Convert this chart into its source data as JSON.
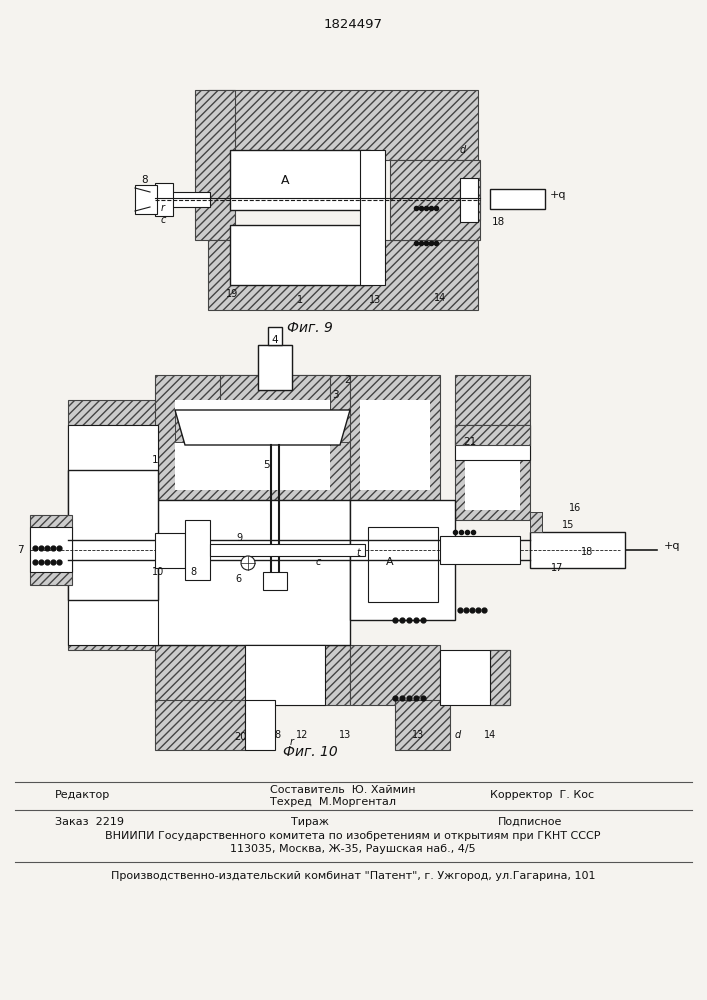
{
  "patent_number": "1824497",
  "background_color": "#f5f3ef",
  "page_width": 7.07,
  "page_height": 10.0,
  "fig9_caption": "Фиг. 9",
  "fig10_caption": "Фиг. 10",
  "footer_line1_left": "Редактор",
  "footer_comp": "Составитель  Ю. Хаймин",
  "footer_tech": "Техред  М.Моргентал",
  "footer_corr": "Корректор  Г. Кос",
  "footer_order": "Заказ  2219",
  "footer_tir": "Тираж",
  "footer_sub": "Подписное",
  "footer_vniip1": "ВНИИПИ Государственного комитета по изобретениям и открытиям при ГКНТ СССР",
  "footer_vniip2": "113035, Москва, Ж-35, Раушская наб., 4/5",
  "footer_prod": "Производственно-издательский комбинат \"Патент\", г. Ужгород, ул.Гагарина, 101",
  "hatch_color": "#666666",
  "line_color": "#1a1a1a",
  "text_color": "#111111"
}
